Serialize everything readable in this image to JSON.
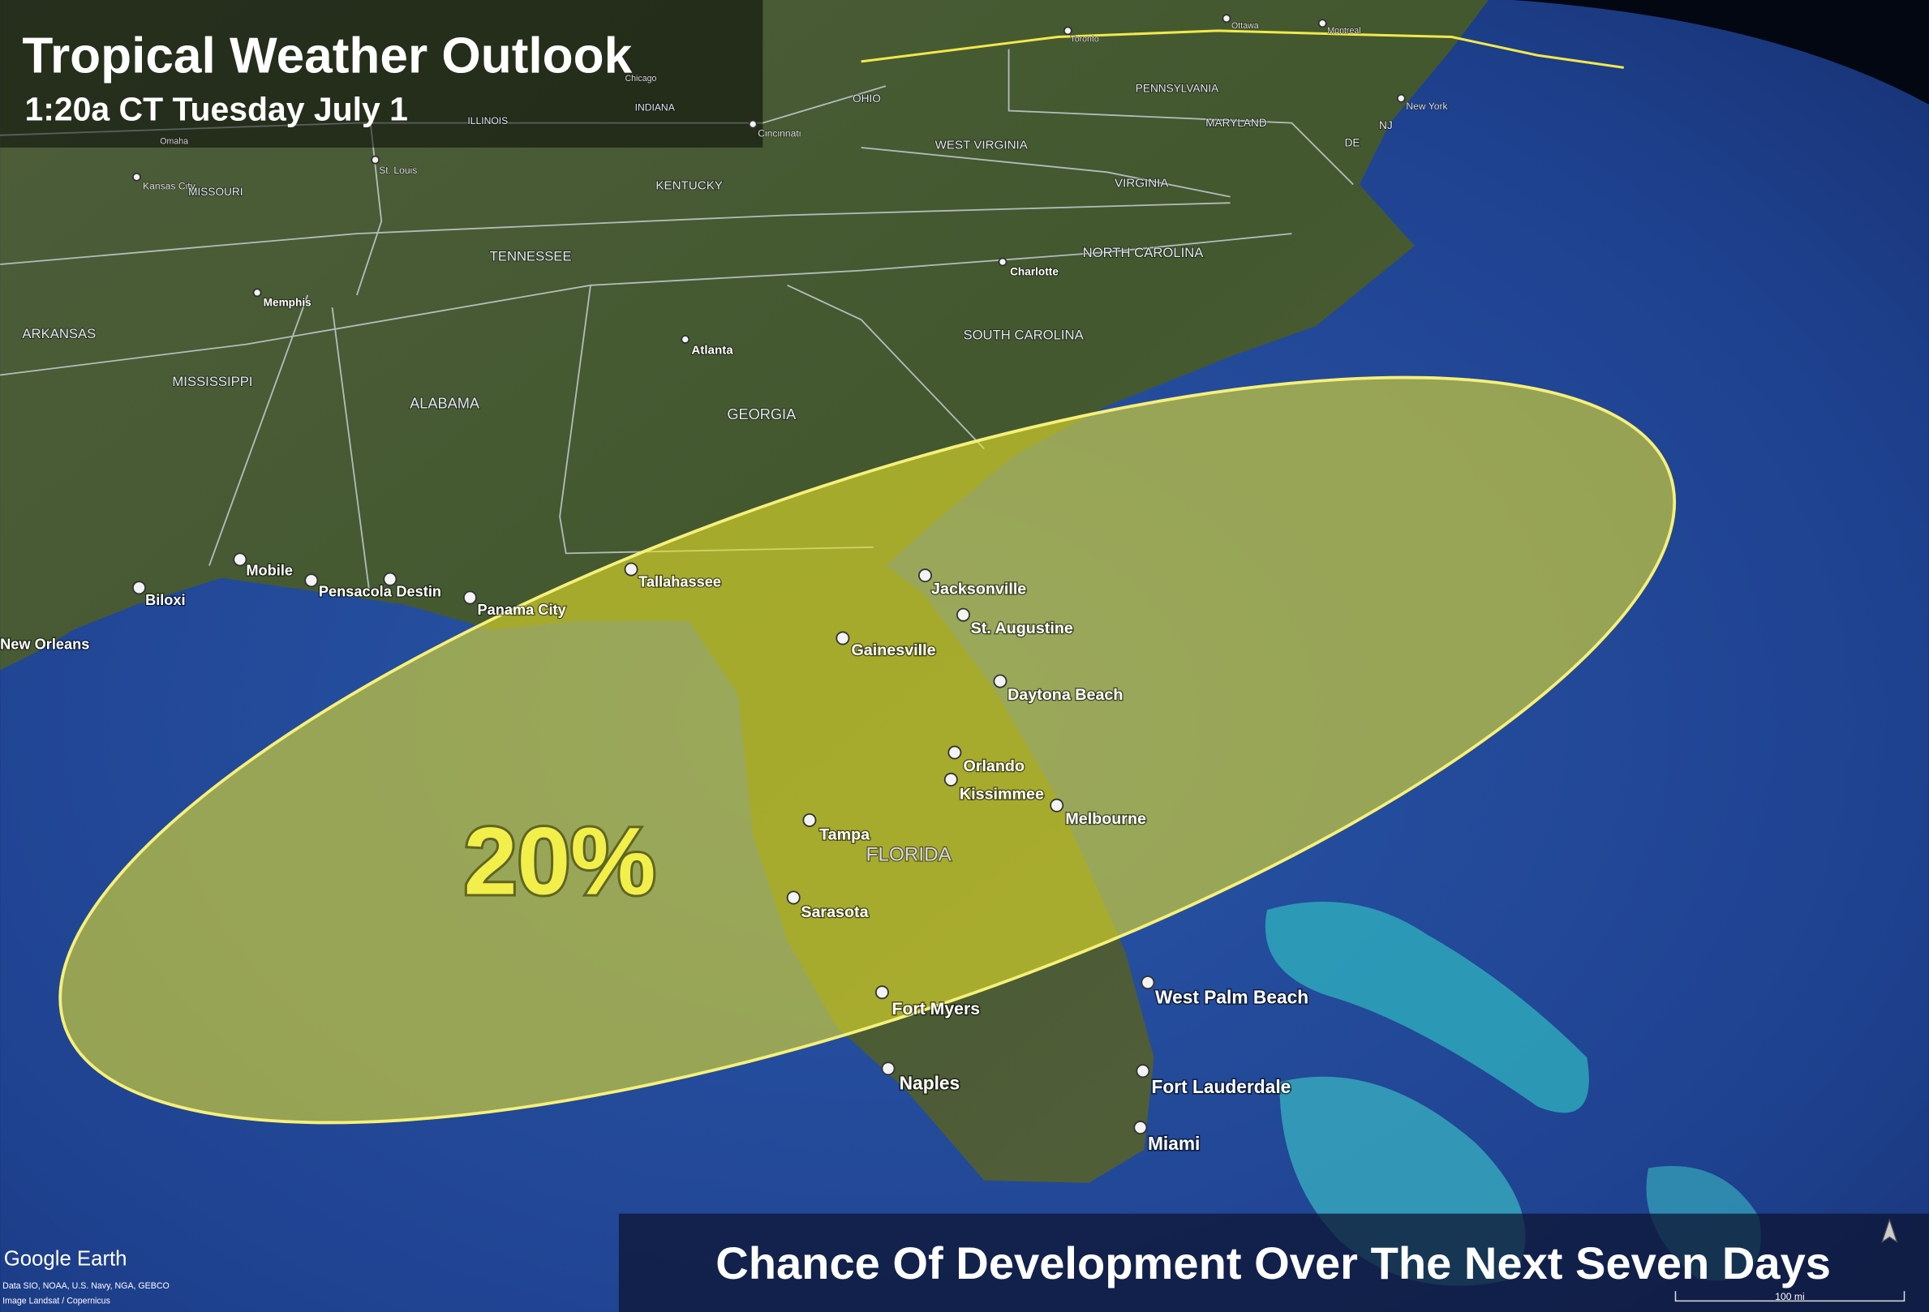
{
  "header": {
    "title": "Tropical Weather Outlook",
    "subtitle": "1:20a CT Tuesday July 1"
  },
  "outlook": {
    "area_label": "20%",
    "caption": "Chance Of Development Over The Next Seven Days"
  },
  "cities": [
    "Jacksonville",
    "St. Augustine",
    "Gainesville",
    "Daytona Beach",
    "Orlando",
    "Kissimmee",
    "Melbourne",
    "Tampa",
    "Sarasota",
    "Fort Myers",
    "Naples",
    "West Palm Beach",
    "Fort Lauderdale",
    "Miami",
    "Tallahassee",
    "Mobile",
    "Biloxi",
    "Pensacola",
    "Destin",
    "Panama City",
    "New Orleans",
    "Atlanta",
    "Memphis",
    "Charlotte",
    "St. Louis",
    "Kansas City",
    "Cincinnati",
    "New York",
    "Toronto",
    "Ottawa",
    "Montreal",
    "Chicago",
    "Omaha"
  ],
  "states": [
    "FLORIDA",
    "ARKANSAS",
    "MISSISSIPPI",
    "ALABAMA",
    "GEORGIA",
    "TENNESSEE",
    "SOUTH CAROLINA",
    "NORTH CAROLINA",
    "VIRGINIA",
    "WEST VIRGINIA",
    "KENTUCKY",
    "OHIO",
    "PENNSYLVANIA",
    "MARYLAND",
    "DE",
    "NJ",
    "MISSOURI",
    "INDIANA",
    "ILLINOIS"
  ],
  "attribution": {
    "brand": "Google Earth",
    "data": "Data SIO, NOAA, U.S. Navy, NGA, GEBCO",
    "imagery": "Image Landsat / Copernicus",
    "scale": "100 mi"
  }
}
